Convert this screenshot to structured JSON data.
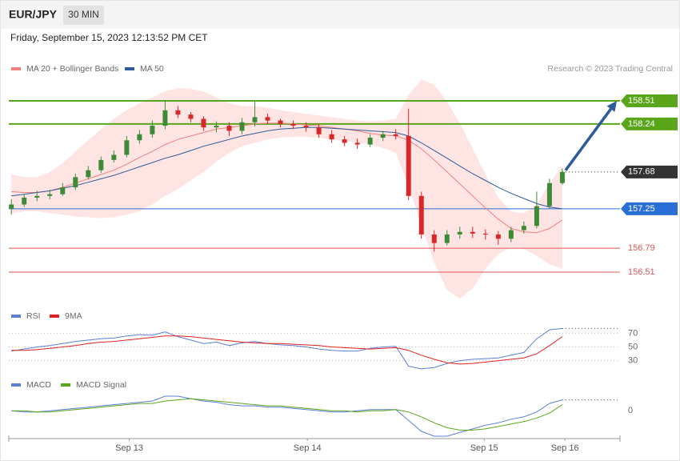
{
  "header": {
    "symbol": "EUR/JPY",
    "interval": "30 MIN",
    "date": "Friday, September 15, 2023 12:13:52 PM CET",
    "credit": "Research © 2023 Trading Central"
  },
  "chart_data": [
    {
      "type": "candlestick",
      "xlim": [
        -0.2,
        47.5
      ],
      "xticks": [
        {
          "value": 9.2,
          "label": "Sep 13"
        },
        {
          "value": 23.1,
          "label": "Sep 14"
        },
        {
          "value": 36.9,
          "label": "Sep 15"
        },
        {
          "value": 43.2,
          "label": "Sep 16"
        }
      ],
      "ylim": [
        156.0,
        159.0
      ],
      "up_color": "#3d8b37",
      "down_color": "#d62828",
      "band_color": "#ffb3b3",
      "open": [
        157.25,
        157.3,
        157.38,
        157.4,
        157.42,
        157.5,
        157.62,
        157.7,
        157.82,
        157.88,
        158.05,
        158.12,
        158.22,
        158.4,
        158.35,
        158.3,
        158.2,
        158.22,
        158.16,
        158.26,
        158.32,
        158.28,
        158.24,
        158.22,
        158.2,
        158.12,
        158.06,
        158.02,
        158.0,
        158.08,
        158.12,
        158.1,
        157.4,
        156.95,
        156.85,
        156.95,
        156.98,
        156.96,
        156.95,
        156.9,
        157.0,
        157.05,
        157.28,
        157.55
      ],
      "high": [
        157.36,
        157.42,
        157.46,
        157.47,
        157.55,
        157.66,
        157.75,
        157.86,
        157.93,
        158.1,
        158.17,
        158.28,
        158.52,
        158.45,
        158.38,
        158.33,
        158.27,
        158.26,
        158.31,
        158.5,
        158.36,
        158.3,
        158.28,
        158.26,
        158.24,
        158.17,
        158.1,
        158.07,
        158.12,
        158.16,
        158.18,
        158.42,
        157.45,
        157.0,
        157.0,
        157.04,
        157.04,
        157.01,
        156.99,
        157.04,
        157.1,
        157.45,
        157.6,
        157.72
      ],
      "low": [
        157.18,
        157.27,
        157.34,
        157.36,
        157.4,
        157.47,
        157.59,
        157.67,
        157.79,
        157.85,
        158.01,
        158.08,
        158.18,
        158.31,
        158.26,
        158.16,
        158.14,
        158.1,
        158.12,
        158.21,
        158.24,
        158.2,
        158.18,
        158.15,
        158.08,
        158.02,
        157.98,
        157.95,
        157.97,
        158.04,
        158.06,
        157.35,
        156.9,
        156.75,
        156.82,
        156.9,
        156.91,
        156.89,
        156.83,
        156.86,
        156.96,
        157.02,
        157.25,
        157.53
      ],
      "close": [
        157.3,
        157.38,
        157.4,
        157.42,
        157.5,
        157.62,
        157.7,
        157.82,
        157.88,
        158.05,
        158.12,
        158.22,
        158.4,
        158.35,
        158.3,
        158.2,
        158.22,
        158.16,
        158.26,
        158.32,
        158.28,
        158.24,
        158.22,
        158.2,
        158.12,
        158.06,
        158.02,
        158.0,
        158.08,
        158.12,
        158.1,
        157.4,
        156.95,
        156.85,
        156.95,
        156.98,
        156.96,
        156.95,
        156.9,
        157.0,
        157.05,
        157.28,
        157.55,
        157.68
      ],
      "bb_upper": [
        157.65,
        157.62,
        157.62,
        157.68,
        157.78,
        157.92,
        158.05,
        158.18,
        158.3,
        158.4,
        158.48,
        158.55,
        158.62,
        158.66,
        158.65,
        158.62,
        158.55,
        158.48,
        158.45,
        158.45,
        158.43,
        158.4,
        158.38,
        158.36,
        158.34,
        158.32,
        158.3,
        158.28,
        158.27,
        158.28,
        158.3,
        158.58,
        158.76,
        158.7,
        158.5,
        158.25,
        157.95,
        157.65,
        157.38,
        157.22,
        157.2,
        157.3,
        157.55,
        157.75
      ],
      "bb_lower": [
        157.2,
        157.22,
        157.22,
        157.2,
        157.18,
        157.16,
        157.15,
        157.14,
        157.15,
        157.18,
        157.22,
        157.3,
        157.4,
        157.48,
        157.58,
        157.68,
        157.8,
        157.9,
        157.98,
        158.02,
        158.06,
        158.08,
        158.09,
        158.09,
        158.08,
        158.06,
        158.04,
        158.02,
        158.0,
        157.96,
        157.9,
        157.52,
        157.05,
        156.62,
        156.3,
        156.2,
        156.32,
        156.55,
        156.72,
        156.8,
        156.78,
        156.7,
        156.6,
        156.55
      ],
      "series": [
        {
          "name": "MA 20 + Bollinger Bands",
          "color": "#f08080",
          "values": [
            157.45,
            157.44,
            157.44,
            157.46,
            157.5,
            157.55,
            157.6,
            157.65,
            157.7,
            157.77,
            157.85,
            157.92,
            158.0,
            158.06,
            158.1,
            158.14,
            158.18,
            158.2,
            158.22,
            158.24,
            158.25,
            158.25,
            158.24,
            158.23,
            158.22,
            158.2,
            158.18,
            158.16,
            158.13,
            158.11,
            158.1,
            158.05,
            157.95,
            157.82,
            157.68,
            157.54,
            157.4,
            157.26,
            157.13,
            157.02,
            156.98,
            156.97,
            157.02,
            157.12
          ]
        },
        {
          "name": "MA 50",
          "color": "#2e5b9a",
          "values": [
            157.4,
            157.42,
            157.44,
            157.46,
            157.49,
            157.52,
            157.56,
            157.6,
            157.64,
            157.69,
            157.74,
            157.79,
            157.84,
            157.88,
            157.93,
            157.98,
            158.02,
            158.06,
            158.1,
            158.13,
            158.16,
            158.18,
            158.19,
            158.2,
            158.2,
            158.19,
            158.18,
            158.17,
            158.16,
            158.15,
            158.14,
            158.1,
            158.02,
            157.93,
            157.84,
            157.75,
            157.66,
            157.58,
            157.5,
            157.43,
            157.37,
            157.31,
            157.27,
            157.25
          ]
        }
      ],
      "levels": [
        {
          "value": 158.51,
          "color": "#5aa61b",
          "line": "solid",
          "badge": true
        },
        {
          "value": 158.24,
          "color": "#5aa61b",
          "line": "solid",
          "badge": true
        },
        {
          "value": 157.68,
          "color": "#333333",
          "line": "dotted",
          "badge": true
        },
        {
          "value": 157.25,
          "color": "#2a6fd6",
          "line": "solid",
          "badge": true
        },
        {
          "value": 156.79,
          "color": "#e05555",
          "line": "solid",
          "badge": false
        },
        {
          "value": 156.51,
          "color": "#e05555",
          "line": "solid",
          "badge": false
        }
      ]
    },
    {
      "type": "line",
      "ylim": [
        15,
        85
      ],
      "yticks": [
        70,
        50,
        30
      ],
      "series": [
        {
          "name": "RSI",
          "color": "#5b7fd6",
          "values": [
            44,
            47,
            50,
            52,
            55,
            58,
            60,
            62,
            63,
            66,
            68,
            67,
            72,
            65,
            60,
            55,
            57,
            52,
            56,
            58,
            55,
            53,
            52,
            50,
            47,
            45,
            44,
            44,
            48,
            50,
            51,
            22,
            18,
            20,
            26,
            30,
            32,
            33,
            34,
            38,
            42,
            62,
            75,
            77
          ]
        },
        {
          "name": "9MA",
          "color": "#e02020",
          "values": [
            45,
            45,
            46,
            48,
            50,
            52,
            55,
            57,
            58,
            60,
            62,
            64,
            66,
            66,
            65,
            63,
            61,
            59,
            57,
            56,
            55,
            55,
            54,
            53,
            52,
            50,
            49,
            48,
            47,
            48,
            49,
            45,
            38,
            32,
            27,
            25,
            26,
            28,
            30,
            32,
            34,
            40,
            52,
            65
          ]
        }
      ]
    },
    {
      "type": "line",
      "ylim": [
        -0.24,
        0.15
      ],
      "yticks": [
        0
      ],
      "series": [
        {
          "name": "MACD",
          "color": "#5b7fd6",
          "values": [
            0.0,
            -0.01,
            -0.01,
            0.0,
            0.01,
            0.02,
            0.03,
            0.04,
            0.05,
            0.06,
            0.07,
            0.08,
            0.12,
            0.12,
            0.1,
            0.08,
            0.07,
            0.05,
            0.04,
            0.04,
            0.03,
            0.03,
            0.02,
            0.01,
            0.0,
            -0.01,
            -0.01,
            0.0,
            0.01,
            0.01,
            0.01,
            -0.08,
            -0.17,
            -0.21,
            -0.21,
            -0.18,
            -0.15,
            -0.12,
            -0.1,
            -0.07,
            -0.05,
            -0.01,
            0.06,
            0.09
          ]
        },
        {
          "name": "MACD Signal",
          "color": "#5aa61b",
          "values": [
            0.0,
            0.0,
            -0.01,
            -0.01,
            0.0,
            0.01,
            0.02,
            0.03,
            0.04,
            0.05,
            0.06,
            0.06,
            0.08,
            0.09,
            0.1,
            0.09,
            0.08,
            0.07,
            0.06,
            0.05,
            0.04,
            0.04,
            0.03,
            0.02,
            0.01,
            0.0,
            0.0,
            -0.01,
            0.0,
            0.0,
            0.01,
            -0.01,
            -0.05,
            -0.1,
            -0.14,
            -0.16,
            -0.16,
            -0.15,
            -0.13,
            -0.11,
            -0.09,
            -0.06,
            -0.02,
            0.05
          ]
        }
      ]
    }
  ]
}
